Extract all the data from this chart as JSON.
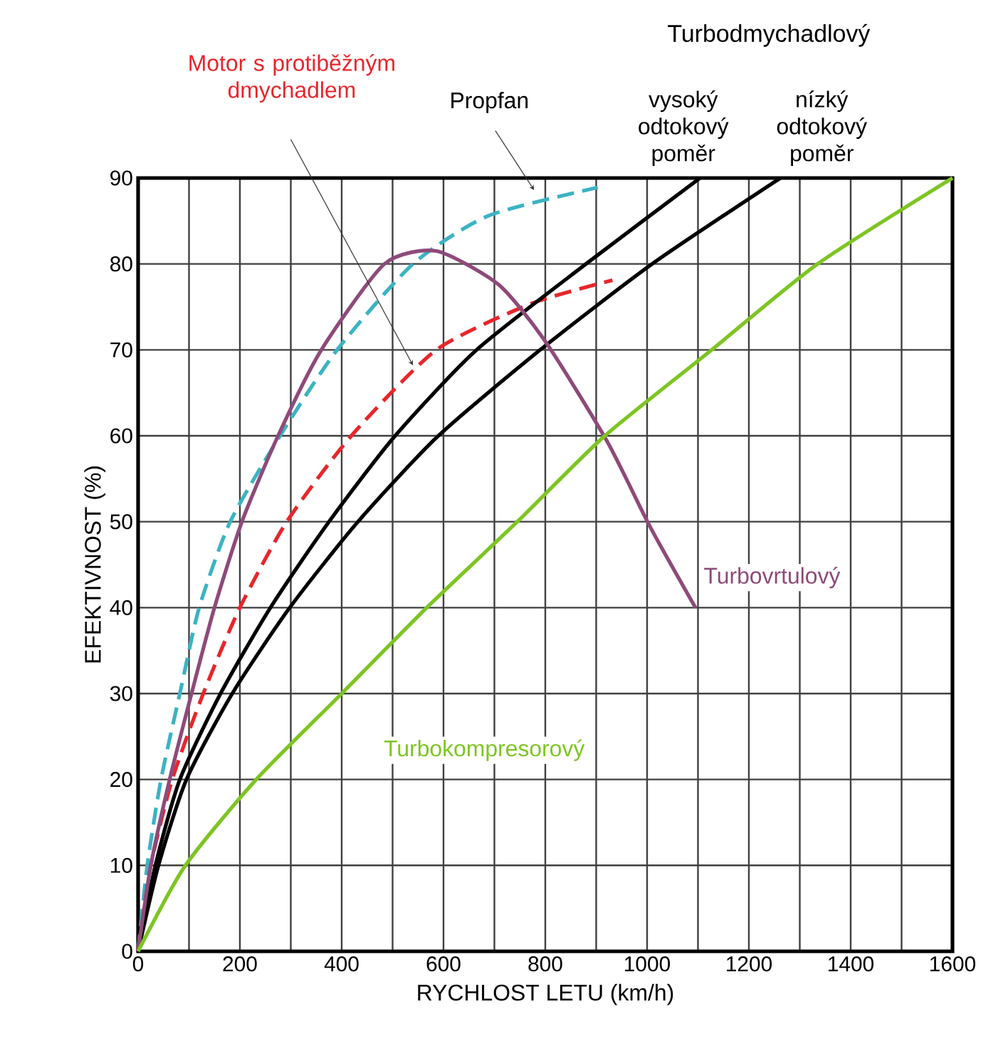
{
  "chart_data": {
    "type": "line",
    "xlabel": "RYCHLOST LETU (km/h)",
    "ylabel": "EFEKTIVNOST (%)",
    "annotations": [
      "Turbodmychadlový"
    ],
    "xlim": [
      0,
      1600
    ],
    "ylim": [
      0,
      90
    ],
    "xticks": [
      0,
      {
        "value": 100,
        "label": null
      },
      200,
      {
        "value": 300,
        "label": null
      },
      400,
      {
        "value": 500,
        "label": null
      },
      600,
      {
        "value": 700,
        "label": null
      },
      800,
      {
        "value": 900,
        "label": null
      },
      1000,
      {
        "value": 1100,
        "label": null
      },
      1200,
      {
        "value": 1300,
        "label": null
      },
      1400,
      {
        "value": 1500,
        "label": null
      },
      1600
    ],
    "yticks": [
      0,
      10,
      20,
      30,
      40,
      50,
      60,
      70,
      80,
      90
    ],
    "grid": true,
    "legend": false,
    "marker": "none",
    "series": [
      {
        "name": "Propfan",
        "color": "#3bb3c3",
        "line_style": "dashed",
        "x": [
          0,
          18,
          45,
          82,
          120,
          181,
          279,
          391,
          540,
          688,
          903
        ],
        "values": [
          0,
          10,
          20,
          30,
          40,
          50,
          60,
          70,
          80,
          85.6,
          88.9
        ]
      },
      {
        "name": "Motor s protiběžným dmychadlem",
        "color": "#e8262b",
        "line_style": "dashed",
        "x": [
          0,
          25,
          67,
          128,
          200,
          292,
          419,
          586,
          773,
          932
        ],
        "values": [
          0,
          10,
          20,
          30,
          40,
          50,
          60,
          70,
          75.4,
          78.1
        ]
      },
      {
        "name": "vysoký odtokový poměr",
        "color": "#000000",
        "line_style": "solid",
        "x": [
          0,
          34,
          82,
          162,
          260,
          375,
          505,
          665,
          880,
          1104
        ],
        "values": [
          0,
          10,
          20,
          30,
          40,
          50,
          60,
          70,
          80,
          90
        ]
      },
      {
        "name": "nízký odtokový poměr",
        "color": "#000000",
        "line_style": "solid",
        "x": [
          0,
          40,
          95,
          185,
          298,
          432,
          590,
          790,
          1010,
          1262
        ],
        "values": [
          0,
          10,
          20,
          30,
          40,
          50,
          60,
          70,
          80,
          90
        ]
      },
      {
        "name": "Turbovrtulový",
        "color": "#8e4a7a",
        "line_style": "solid",
        "x": [
          0,
          25,
          62,
          105,
          150,
          204,
          275,
          360,
          484,
          586,
          708,
          801,
          922,
          1006,
          1095
        ],
        "values": [
          0,
          10,
          20,
          30,
          40,
          50,
          60,
          70,
          80,
          81.5,
          77.6,
          70.9,
          59.3,
          49.4,
          40
        ]
      },
      {
        "name": "Turbokompresorový",
        "color": "#7dc522",
        "line_style": "solid",
        "x": [
          0,
          93,
          232,
          400,
          567,
          745,
          917,
          1127,
          1335,
          1600
        ],
        "values": [
          0,
          10,
          20,
          30,
          40,
          50,
          60,
          70,
          80,
          90
        ]
      }
    ]
  }
}
